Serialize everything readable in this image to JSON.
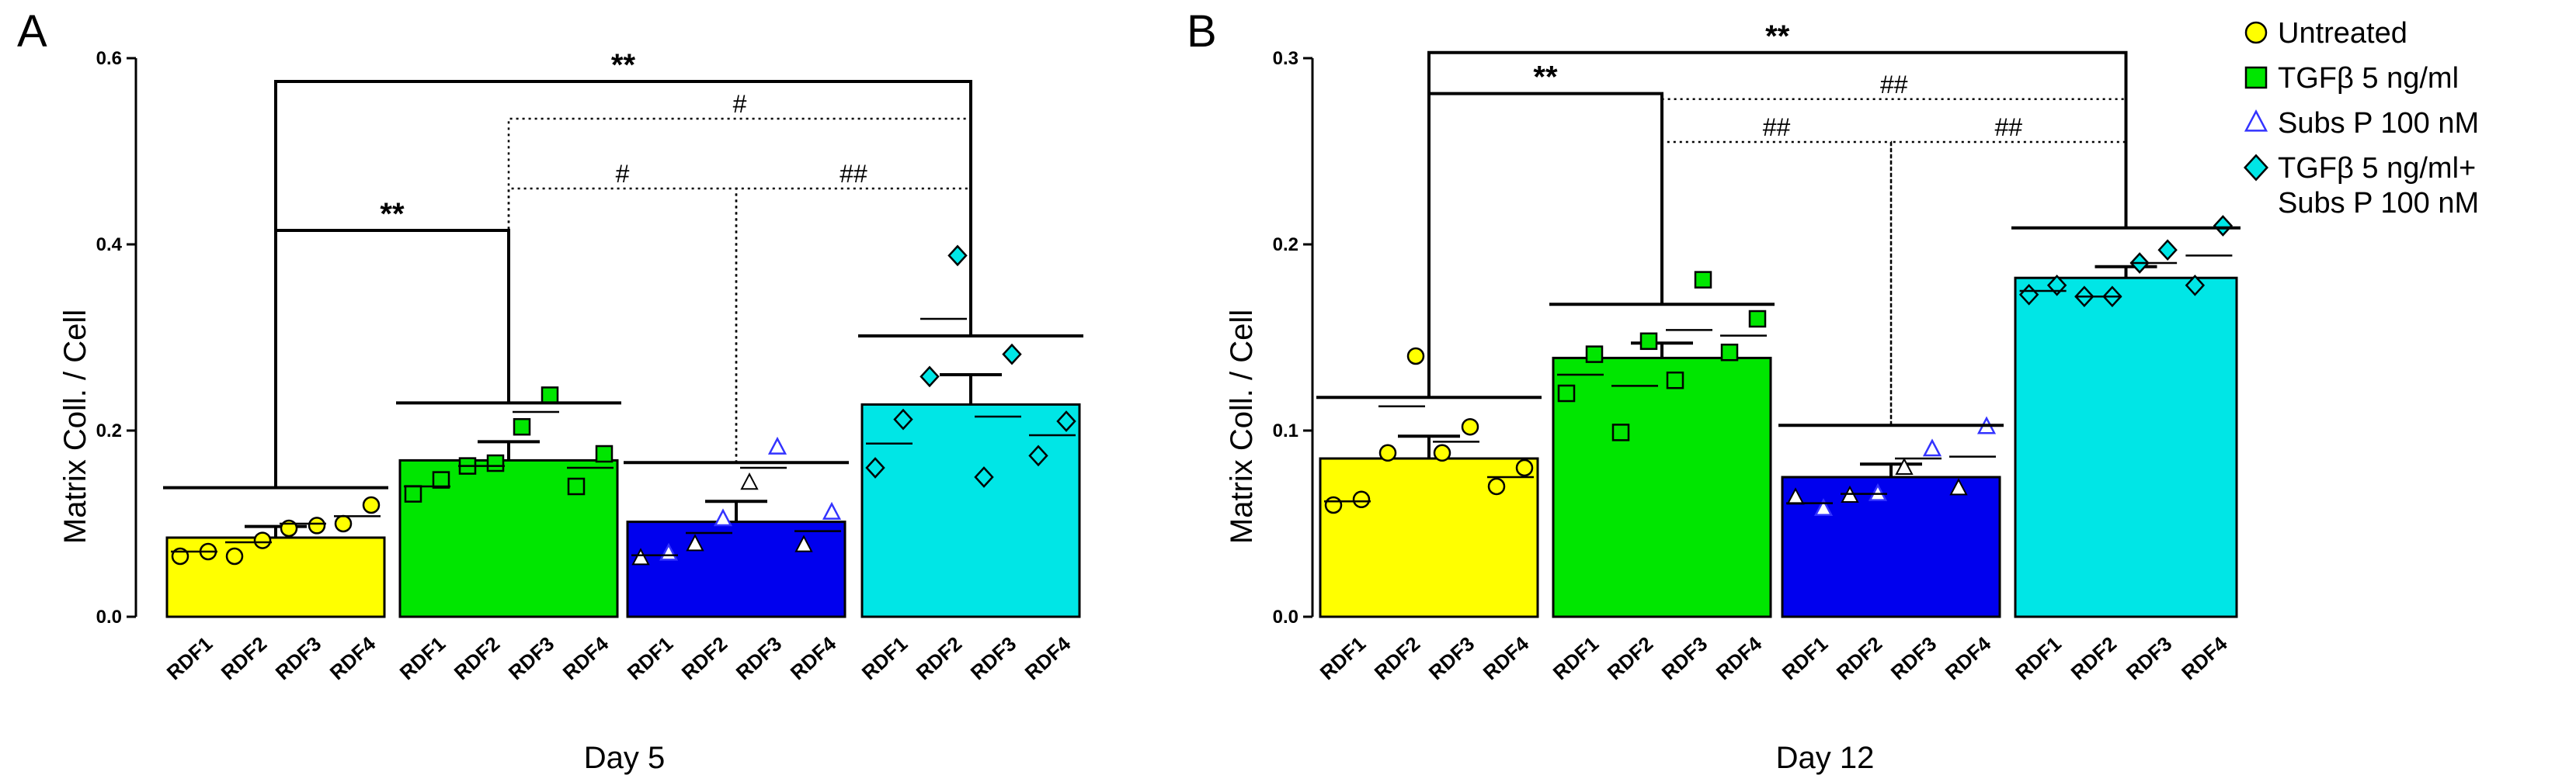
{
  "chart_data": [
    {
      "type": "bar",
      "panel": "A",
      "title": "",
      "xlabel": "Day 5",
      "ylabel": "Matrix Coll. / Cell",
      "ylim": [
        0,
        0.6
      ],
      "yticks": [
        0.0,
        0.2,
        0.4,
        0.6
      ],
      "ytick_labels": [
        "0.0",
        "0.2",
        "0.4",
        "0.6"
      ],
      "categories": [
        "RDF1",
        "RDF2",
        "RDF3",
        "RDF4"
      ],
      "series": [
        {
          "name": "Untreated",
          "mean": 0.085,
          "sem": 0.012,
          "marker": "circle",
          "color": "#ffff00",
          "points": [
            [
              0.065,
              0.07
            ],
            [
              0.065,
              0.082
            ],
            [
              0.095,
              0.098
            ],
            [
              0.1,
              0.12
            ]
          ],
          "medians": [
            0.07,
            0.08,
            0.1,
            0.108
          ]
        },
        {
          "name": "TGFβ 5 ng/ml",
          "mean": 0.168,
          "sem": 0.02,
          "marker": "square",
          "color": "#00e600",
          "points": [
            [
              0.132,
              0.147
            ],
            [
              0.162,
              0.165
            ],
            [
              0.204,
              0.238
            ],
            [
              0.14,
              0.175
            ]
          ],
          "medians": [
            0.14,
            0.162,
            0.22,
            0.16
          ]
        },
        {
          "name": "Subs P 100 nM",
          "mean": 0.102,
          "sem": 0.022,
          "marker": "triangle",
          "color": "#0000ee",
          "points": [
            [
              0.063,
              0.068
            ],
            [
              0.078,
              0.105
            ],
            [
              0.144,
              0.182
            ],
            [
              0.077,
              0.112
            ]
          ],
          "medians": [
            0.066,
            0.09,
            0.16,
            0.092
          ]
        },
        {
          "name": "TGFβ 5 ng/ml+ Subs P 100 nM",
          "mean": 0.228,
          "sem": 0.032,
          "marker": "diamond",
          "color": "#00e6e6",
          "points": [
            [
              0.16,
              0.212
            ],
            [
              0.258,
              0.388
            ],
            [
              0.15,
              0.282
            ],
            [
              0.173,
              0.21
            ]
          ],
          "medians": [
            0.186,
            0.32,
            0.215,
            0.195
          ]
        }
      ],
      "annotations": [
        {
          "label": "**",
          "from": 0,
          "to": 1,
          "level": 0.415,
          "line": "solid"
        },
        {
          "label": "**",
          "from": 0,
          "to": 3,
          "level": 0.575,
          "line": "solid"
        },
        {
          "label": "#",
          "from": 1,
          "to": 2,
          "level": 0.46,
          "line": "dotted"
        },
        {
          "label": "##",
          "from": 2,
          "to": 3,
          "level": 0.46,
          "line": "dotted"
        },
        {
          "label": "#",
          "from": 1,
          "to": 3,
          "level": 0.535,
          "line": "dotted"
        }
      ]
    },
    {
      "type": "bar",
      "panel": "B",
      "title": "",
      "xlabel": "Day 12",
      "ylabel": "Matrix Coll. / Cell",
      "ylim": [
        0,
        0.3
      ],
      "yticks": [
        0.0,
        0.1,
        0.2,
        0.3
      ],
      "ytick_labels": [
        "0.0",
        "0.1",
        "0.2",
        "0.3"
      ],
      "categories": [
        "RDF1",
        "RDF2",
        "RDF3",
        "RDF4"
      ],
      "series": [
        {
          "name": "Untreated",
          "mean": 0.085,
          "sem": 0.012,
          "marker": "circle",
          "color": "#ffff00",
          "points": [
            [
              0.06,
              0.063
            ],
            [
              0.088,
              0.14
            ],
            [
              0.088,
              0.102
            ],
            [
              0.07,
              0.08
            ]
          ],
          "medians": [
            0.062,
            0.113,
            0.094,
            0.075
          ]
        },
        {
          "name": "TGFβ 5 ng/ml",
          "mean": 0.139,
          "sem": 0.008,
          "marker": "square",
          "color": "#00e600",
          "points": [
            [
              0.12,
              0.141
            ],
            [
              0.099,
              0.148
            ],
            [
              0.127,
              0.181
            ],
            [
              0.142,
              0.16
            ]
          ],
          "medians": [
            0.13,
            0.124,
            0.154,
            0.151
          ]
        },
        {
          "name": "Subs P 100 nM",
          "mean": 0.075,
          "sem": 0.007,
          "marker": "triangle",
          "color": "#0000ee",
          "points": [
            [
              0.064,
              0.058
            ],
            [
              0.065,
              0.066
            ],
            [
              0.08,
              0.09
            ],
            [
              0.069,
              0.102
            ]
          ],
          "medians": [
            0.061,
            0.066,
            0.085,
            0.086
          ]
        },
        {
          "name": "TGFβ 5 ng/ml+ Subs P 100 nM",
          "mean": 0.182,
          "sem": 0.006,
          "marker": "diamond",
          "color": "#00e6e6",
          "points": [
            [
              0.173,
              0.178
            ],
            [
              0.172,
              0.172
            ],
            [
              0.19,
              0.197
            ],
            [
              0.178,
              0.21
            ]
          ],
          "medians": [
            0.175,
            0.172,
            0.19,
            0.194
          ]
        }
      ],
      "annotations": [
        {
          "label": "**",
          "from": 0,
          "to": 1,
          "level": 0.281,
          "line": "solid"
        },
        {
          "label": "**",
          "from": 0,
          "to": 3,
          "level": 0.303,
          "line": "solid"
        },
        {
          "label": "##",
          "from": 1,
          "to": 3,
          "level": 0.278,
          "line": "dotted"
        },
        {
          "label": "##",
          "from": 1,
          "to": 2,
          "level": 0.255,
          "line": "dotted"
        },
        {
          "label": "##",
          "from": 2,
          "to": 3,
          "level": 0.255,
          "line": "dotted"
        }
      ]
    }
  ],
  "legend": {
    "items": [
      {
        "label": "Untreated",
        "marker": "circle",
        "color": "#ffff00"
      },
      {
        "label": "TGFβ 5 ng/ml",
        "marker": "square",
        "color": "#00e600"
      },
      {
        "label": "Subs P 100 nM",
        "marker": "triangle",
        "color": "#0000ee"
      },
      {
        "label": "TGFβ 5 ng/ml+",
        "label2": "Subs P 100 nM",
        "marker": "diamond",
        "color": "#00e6e6"
      }
    ]
  }
}
